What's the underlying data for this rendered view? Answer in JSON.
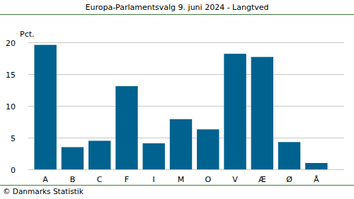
{
  "chart_data": {
    "type": "bar",
    "title": "Europa-Parlamentsvalg 9. juni 2024 - Langtved",
    "y_label": "Pct.",
    "source": "© Danmarks Statistik",
    "categories": [
      "A",
      "B",
      "C",
      "F",
      "I",
      "M",
      "O",
      "V",
      "Æ",
      "Ø",
      "Å"
    ],
    "values": [
      19.6,
      3.5,
      4.5,
      13.1,
      4.1,
      7.9,
      6.3,
      18.2,
      17.7,
      4.3,
      1.0
    ],
    "color": "#00628f",
    "ylim": [
      0,
      20
    ],
    "yticks": [
      0,
      5,
      10,
      15,
      20
    ],
    "grid": true
  }
}
